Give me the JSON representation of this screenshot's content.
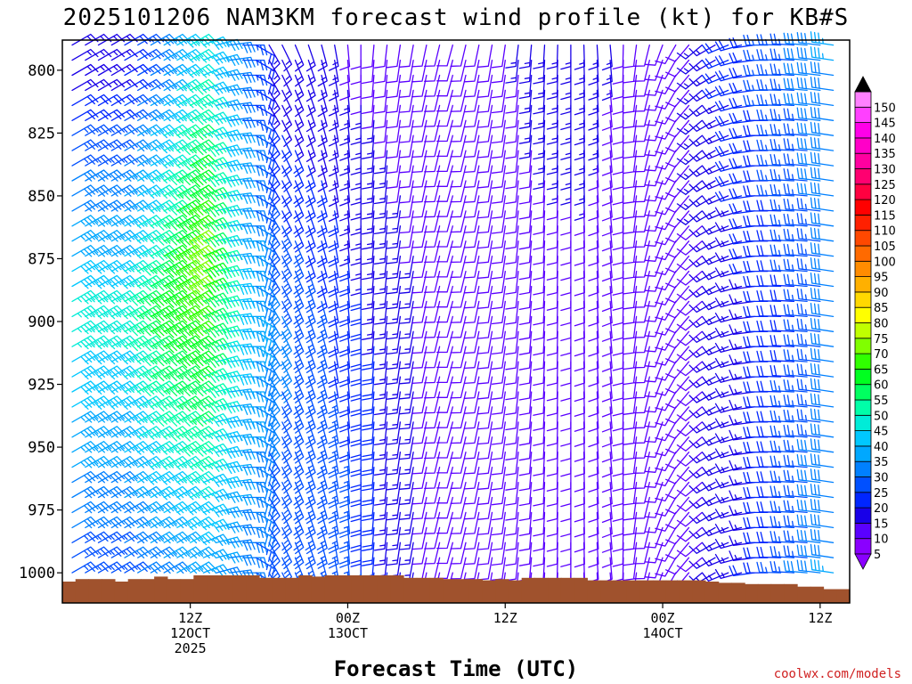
{
  "chart_data": {
    "type": "wind_barb_time_height",
    "title": "2025101206 NAM3KM forecast wind profile (kt) for KB#S",
    "xlabel": "Forecast Time (UTC)",
    "ylabel": "",
    "y_axis": {
      "unit": "hPa",
      "range": [
        1012,
        788
      ],
      "ticks": [
        800,
        825,
        850,
        875,
        900,
        925,
        950,
        975,
        1000
      ]
    },
    "x_axis": {
      "unit": "forecast hour",
      "range": [
        -3.75,
        56.25
      ],
      "ticks": [
        {
          "hour": 6,
          "lines": [
            "12Z",
            "12OCT",
            "2025"
          ]
        },
        {
          "hour": 18,
          "lines": [
            "00Z",
            "13OCT"
          ]
        },
        {
          "hour": 30,
          "lines": [
            "12Z"
          ]
        },
        {
          "hour": 42,
          "lines": [
            "00Z",
            "14OCT"
          ]
        },
        {
          "hour": 54,
          "lines": [
            "12Z"
          ]
        }
      ]
    },
    "colorbar": {
      "unit": "kt",
      "levels": [
        5,
        10,
        15,
        20,
        25,
        30,
        35,
        40,
        45,
        50,
        55,
        60,
        65,
        70,
        75,
        80,
        85,
        90,
        95,
        100,
        105,
        110,
        115,
        120,
        125,
        130,
        135,
        140,
        145,
        150
      ],
      "colors": [
        "#8a00ff",
        "#5a00ff",
        "#1800e8",
        "#0026ff",
        "#0050ff",
        "#0080ff",
        "#00a8ff",
        "#00c8ff",
        "#00ecd8",
        "#00ffa8",
        "#00ff60",
        "#00ff20",
        "#30ff00",
        "#80ff00",
        "#c0ff00",
        "#ffff00",
        "#ffd800",
        "#ffb000",
        "#ff8c00",
        "#ff6a00",
        "#ff4800",
        "#ff2000",
        "#ff0000",
        "#ff0040",
        "#ff0070",
        "#ff00a0",
        "#ff00c8",
        "#ff00e8",
        "#ff40ff",
        "#ff80ff"
      ]
    },
    "wind_speed_kt": {
      "0": {
        "800": 15,
        "900": 45,
        "1000": 25
      },
      "3": {
        "800": 30,
        "900": 60,
        "1000": 30
      },
      "6": {
        "800": 45,
        "875": 70,
        "900": 65,
        "1000": 35
      },
      "9": {
        "800": 30,
        "900": 40,
        "1000": 30
      },
      "12": {
        "800": 15,
        "900": 30,
        "1000": 25
      },
      "18": {
        "800": 12,
        "900": 20,
        "1000": 25
      },
      "24": {
        "800": 10,
        "900": 12,
        "1000": 10
      },
      "30": {
        "800": 12,
        "900": 12,
        "1000": 12
      },
      "36": {
        "800": 15,
        "900": 10,
        "1000": 12
      },
      "42": {
        "800": 8,
        "900": 8,
        "1000": 10
      },
      "48": {
        "800": 20,
        "900": 15,
        "1000": 15
      },
      "54": {
        "800": 30,
        "900": 25,
        "1000": 30
      },
      "56": {
        "800": 35,
        "900": 30,
        "1000": 35
      }
    },
    "wind_direction_deg": {
      "0": 60,
      "6": 60,
      "10": 90,
      "12": 150,
      "16": 165,
      "20": 185,
      "26": 195,
      "32": 185,
      "38": 175,
      "42": 200,
      "46": 240,
      "50": 270,
      "56": 280
    },
    "terrain": {
      "color": "#a0522d",
      "surface_pressure_hPa": [
        1003.5,
        1002.5,
        1002.5,
        1002.5,
        1003.5,
        1002.5,
        1002.5,
        1001.5,
        1002.5,
        1002.5,
        1001,
        1001,
        1001,
        1001,
        1001,
        1002,
        1002,
        1002,
        1001,
        1001.5,
        1001,
        1001,
        1001,
        1001,
        1001,
        1001,
        1002,
        1002,
        1002,
        1002.5,
        1002.5,
        1002.5,
        1003,
        1002.5,
        1003,
        1002,
        1002,
        1002,
        1002,
        1002,
        1003,
        1003,
        1003,
        1003,
        1003,
        1003,
        1003,
        1003,
        1003,
        1003.5,
        1004,
        1004,
        1004.5,
        1004.5,
        1004.5,
        1004.5,
        1005.5,
        1005.5,
        1006.5,
        1006.5
      ]
    },
    "credit": "coolwx.com/models"
  }
}
